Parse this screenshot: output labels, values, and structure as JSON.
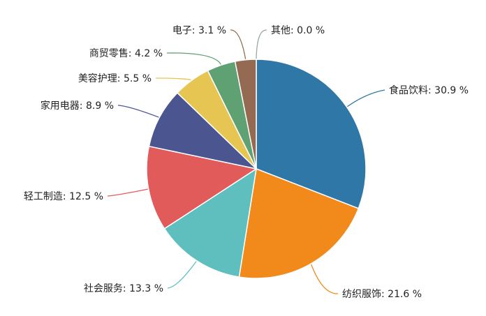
{
  "chart_data": {
    "type": "pie",
    "title": "",
    "unit": "%",
    "slices": [
      {
        "name": "食品饮料",
        "value": 30.9,
        "label": "食品饮料: 30.9 %",
        "color": "#2e77a6"
      },
      {
        "name": "纺织服饰",
        "value": 21.6,
        "label": "纺织服饰: 21.6 %",
        "color": "#f28a1b"
      },
      {
        "name": "社会服务",
        "value": 13.3,
        "label": "社会服务: 13.3 %",
        "color": "#5fbfbf"
      },
      {
        "name": "轻工制造",
        "value": 12.5,
        "label": "轻工制造: 12.5 %",
        "color": "#e15b5b"
      },
      {
        "name": "家用电器",
        "value": 8.9,
        "label": "家用电器: 8.9 %",
        "color": "#4b5590"
      },
      {
        "name": "美容护理",
        "value": 5.5,
        "label": "美容护理: 5.5 %",
        "color": "#e6c552"
      },
      {
        "name": "商贸零售",
        "value": 4.2,
        "label": "商贸零售: 4.2 %",
        "color": "#5fa173"
      },
      {
        "name": "电子",
        "value": 3.1,
        "label": "电子: 3.1 %",
        "color": "#946a52"
      },
      {
        "name": "其他",
        "value": 0.0,
        "label": "其他: 0.0 %",
        "color": "#9aa6a8"
      }
    ]
  }
}
